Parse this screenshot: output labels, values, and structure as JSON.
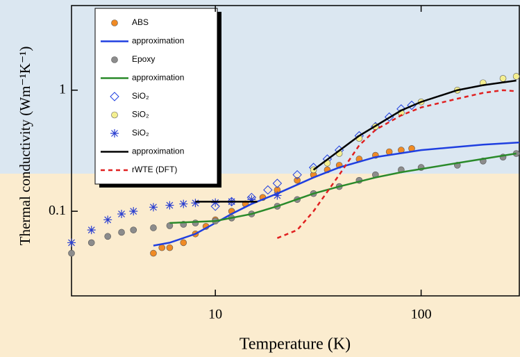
{
  "chart_data": {
    "type": "scatter",
    "log_x": true,
    "log_y": true,
    "xlabel": "Temperature (K)",
    "ylabel": "Thermal conductivity (Wm⁻¹K⁻¹)",
    "xlim": [
      2,
      300
    ],
    "ylim": [
      0.02,
      5
    ],
    "xticks": [
      10,
      100
    ],
    "yticks": [
      0.1,
      1
    ],
    "legend": "upper left",
    "series": [
      {
        "name": "ABS",
        "color": "#f08a24",
        "marker": "circle",
        "x": [
          5,
          5.5,
          6,
          7,
          8,
          9,
          10,
          12,
          14,
          17,
          20,
          25,
          30,
          35,
          40,
          50,
          60,
          70,
          80,
          90
        ],
        "values": [
          0.045,
          0.05,
          0.05,
          0.055,
          0.065,
          0.075,
          0.085,
          0.1,
          0.115,
          0.13,
          0.15,
          0.18,
          0.2,
          0.22,
          0.24,
          0.27,
          0.29,
          0.31,
          0.32,
          0.33
        ]
      },
      {
        "name": "approximation",
        "color": "#1f3fe0",
        "marker": "line",
        "x": [
          5,
          6,
          8,
          10,
          12,
          15,
          20,
          30,
          40,
          60,
          100,
          150,
          200,
          300
        ],
        "values": [
          0.052,
          0.055,
          0.065,
          0.08,
          0.095,
          0.115,
          0.14,
          0.19,
          0.23,
          0.28,
          0.32,
          0.34,
          0.355,
          0.37
        ]
      },
      {
        "name": "Epoxy",
        "color": "#8c8c8c",
        "marker": "circle",
        "x": [
          2,
          2.5,
          3,
          3.5,
          4,
          5,
          6,
          7,
          8,
          10,
          12,
          15,
          20,
          25,
          30,
          40,
          50,
          60,
          80,
          100,
          150,
          200,
          250,
          290
        ],
        "values": [
          0.045,
          0.055,
          0.062,
          0.067,
          0.07,
          0.073,
          0.076,
          0.078,
          0.08,
          0.083,
          0.088,
          0.095,
          0.11,
          0.125,
          0.14,
          0.16,
          0.18,
          0.2,
          0.22,
          0.23,
          0.24,
          0.26,
          0.28,
          0.3
        ]
      },
      {
        "name": "approximation",
        "color": "#2a8a2a",
        "marker": "line",
        "x": [
          6,
          10,
          15,
          20,
          30,
          40,
          60,
          80,
          150,
          290
        ],
        "values": [
          0.08,
          0.083,
          0.095,
          0.11,
          0.14,
          0.16,
          0.19,
          0.21,
          0.25,
          0.3
        ]
      },
      {
        "name": "SiO₂",
        "color": "#1f3fe0",
        "marker": "diamond",
        "x": [
          10,
          12,
          15,
          18,
          20,
          25,
          30,
          35,
          40,
          50,
          60,
          70,
          80,
          90
        ],
        "values": [
          0.11,
          0.12,
          0.13,
          0.15,
          0.17,
          0.2,
          0.23,
          0.27,
          0.32,
          0.42,
          0.5,
          0.6,
          0.7,
          0.75
        ]
      },
      {
        "name": "SiO₂",
        "color": "#f4ef90",
        "marker": "circle",
        "x": [
          30,
          35,
          40,
          50,
          60,
          80,
          100,
          150,
          200,
          250,
          290
        ],
        "values": [
          0.22,
          0.25,
          0.3,
          0.4,
          0.5,
          0.65,
          0.8,
          1.0,
          1.15,
          1.25,
          1.3
        ]
      },
      {
        "name": "SiO₂",
        "color": "#2a3fd0",
        "marker": "asterisk",
        "x": [
          2,
          2.5,
          3,
          3.5,
          4,
          5,
          6,
          7,
          8,
          10,
          12,
          15,
          20
        ],
        "values": [
          0.055,
          0.07,
          0.085,
          0.095,
          0.1,
          0.108,
          0.112,
          0.115,
          0.117,
          0.118,
          0.12,
          0.125,
          0.135
        ]
      },
      {
        "name": "approximation",
        "color": "#000000",
        "marker": "line",
        "x": [
          8,
          16,
          20,
          30,
          50,
          80,
          100,
          150,
          200,
          290
        ],
        "values": [
          0.12,
          0.12,
          null,
          0.22,
          0.42,
          0.68,
          0.8,
          1.0,
          1.1,
          1.2
        ]
      },
      {
        "name": "rWTE (DFT)",
        "color": "#e02020",
        "marker": "dashed",
        "x": [
          20,
          25,
          30,
          40,
          50,
          60,
          80,
          100,
          150,
          200,
          250,
          290
        ],
        "values": [
          0.06,
          0.07,
          0.1,
          0.2,
          0.35,
          0.47,
          0.62,
          0.72,
          0.85,
          0.95,
          1.0,
          0.98
        ]
      }
    ]
  }
}
